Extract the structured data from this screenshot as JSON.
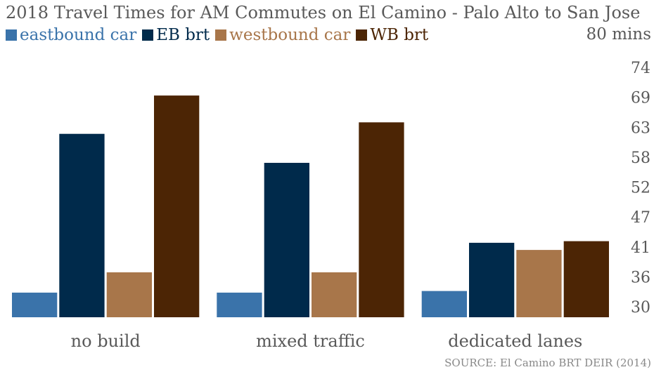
{
  "chart_data": {
    "type": "bar",
    "title": "2018 Travel Times for AM Commutes on El Camino - Palo Alto to San Jose",
    "unit_label": "80 mins",
    "source": "SOURCE: El Camino BRT DEIR (2014)",
    "categories": [
      "no build",
      "mixed traffic",
      "dedicated lanes"
    ],
    "series": [
      {
        "name": "eastbound car",
        "color": "#3a73aa",
        "values": [
          34.5,
          34.5,
          34.8
        ]
      },
      {
        "name": "EB brt",
        "color": "#002a4b",
        "values": [
          63.5,
          58.2,
          43.6
        ]
      },
      {
        "name": "westbound car",
        "color": "#a8764a",
        "values": [
          38.2,
          38.2,
          42.3
        ]
      },
      {
        "name": "WB brt",
        "color": "#4c2505",
        "values": [
          70.5,
          65.6,
          43.9
        ]
      }
    ],
    "yticks": [
      "74",
      "69",
      "63",
      "58",
      "52",
      "47",
      "41",
      "36",
      "30"
    ],
    "ylim": [
      30,
      80
    ],
    "grid": false,
    "legend_position": "top-left"
  }
}
